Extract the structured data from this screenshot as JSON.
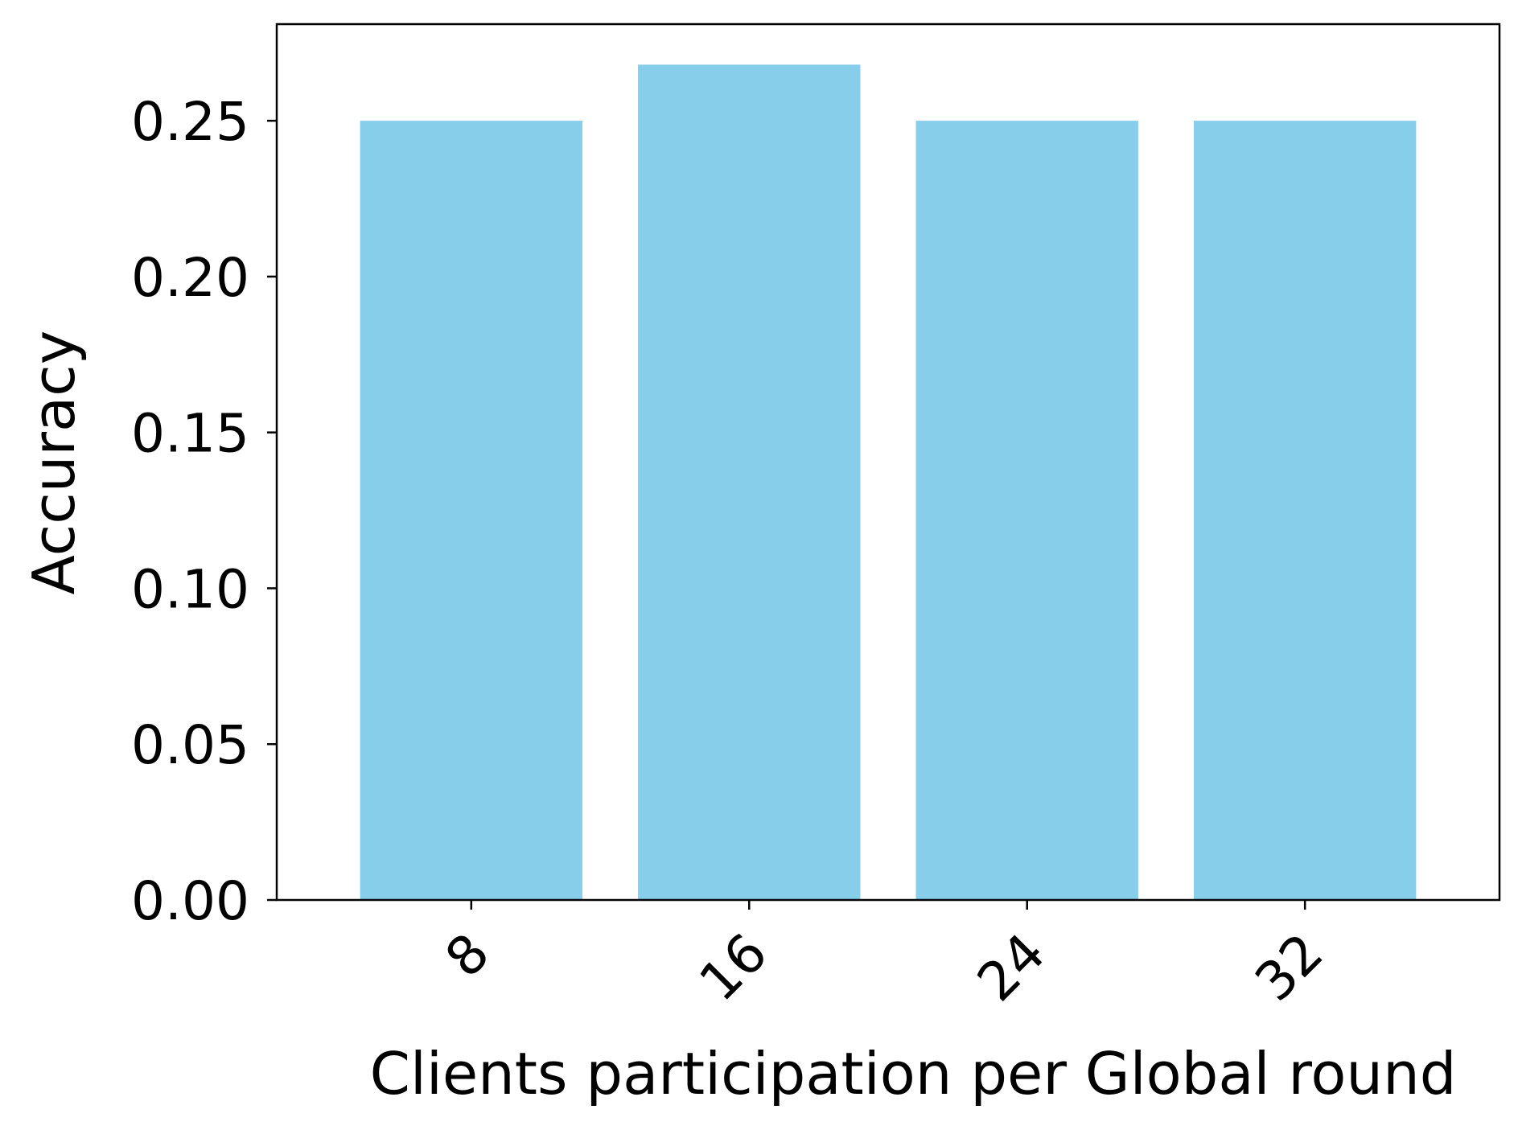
{
  "chart_data": {
    "type": "bar",
    "categories": [
      "8",
      "16",
      "24",
      "32"
    ],
    "values": [
      0.25,
      0.268,
      0.25,
      0.25
    ],
    "title": "",
    "xlabel": "Clients participation per Global round",
    "ylabel": "Accuracy",
    "ylim": [
      0,
      0.281
    ],
    "yticks": [
      "0.00",
      "0.05",
      "0.10",
      "0.15",
      "0.20",
      "0.25"
    ],
    "bar_color": "#87ceeb",
    "grid": false,
    "legend": "none"
  }
}
